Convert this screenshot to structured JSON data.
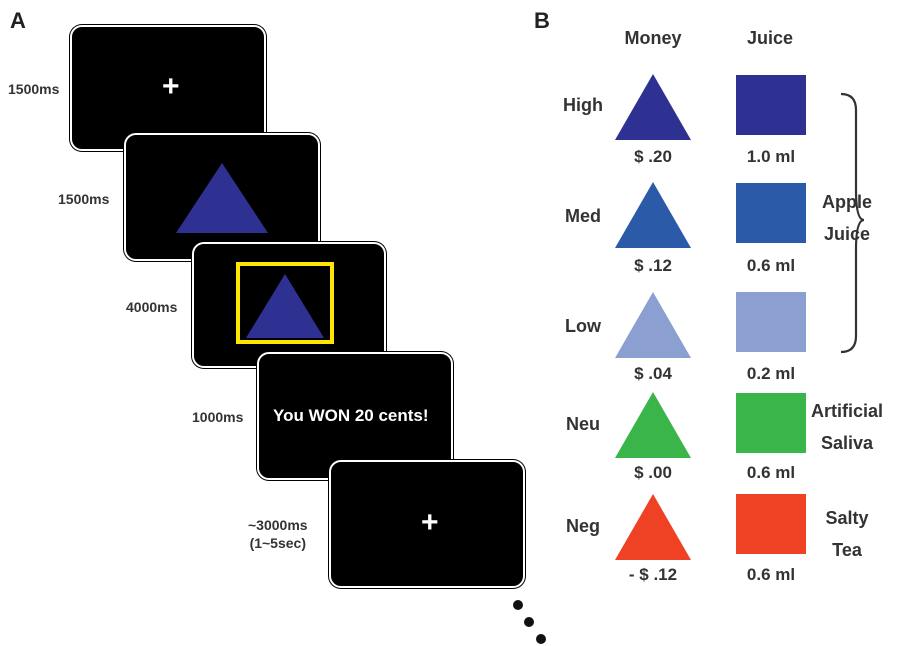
{
  "panel_a": {
    "label": "A",
    "timings": [
      "1500ms",
      "1500ms",
      "4000ms",
      "1000ms",
      "~3000ms",
      "(1~5sec)"
    ],
    "fixation": "+",
    "feedback": "You WON 20 cents!"
  },
  "panel_b": {
    "label": "B",
    "col_money": "Money",
    "col_juice": "Juice",
    "rows": [
      {
        "label": "High",
        "money": "$ .20",
        "juice": "1.0 ml",
        "color": "#2e3192"
      },
      {
        "label": "Med",
        "money": "$ .12",
        "juice": "0.6 ml",
        "color": "#2b5aa8"
      },
      {
        "label": "Low",
        "money": "$ .04",
        "juice": "0.2 ml",
        "color": "#8ba0d0"
      },
      {
        "label": "Neu",
        "money": "$ .00",
        "juice": "0.6 ml",
        "color": "#39b54a"
      },
      {
        "label": "Neg",
        "money": "- $ .12",
        "juice": "0.6 ml",
        "color": "#ef4123"
      }
    ],
    "group_apple": [
      "Apple",
      "Juice"
    ],
    "group_saliva": [
      "Artificial",
      "Saliva"
    ],
    "group_tea": [
      "Salty",
      "Tea"
    ]
  },
  "colors": {
    "screen": "#000000",
    "cue_triangle": "#2e3192",
    "highlight_box": "#ffe600"
  }
}
